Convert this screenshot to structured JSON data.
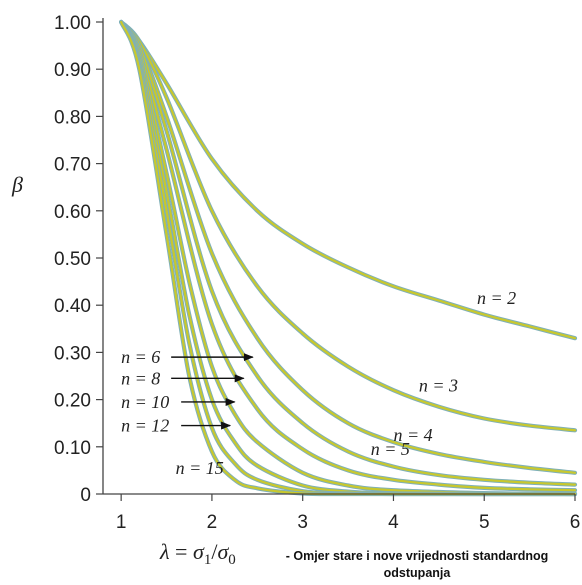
{
  "chart_data": {
    "type": "line",
    "title": "",
    "ylabel": "β",
    "xlabel": "λ = σ1/σ0",
    "xlabel_parts": {
      "lambda": "λ",
      "eq": " = ",
      "s1": "σ",
      "s1_sub": "1",
      "slash": "/",
      "s0": "σ",
      "s0_sub": "0"
    },
    "xlim": [
      0.8,
      6
    ],
    "ylim": [
      0,
      1
    ],
    "x_ticks": [
      "1",
      "2",
      "3",
      "4",
      "5",
      "6"
    ],
    "y_ticks": [
      "0",
      "0.10",
      "0.20",
      "0.30",
      "0.40",
      "0.50",
      "0.60",
      "0.70",
      "0.80",
      "0.90",
      "1.00"
    ],
    "grid": false,
    "legend": "none",
    "curve_color": "#c8c82e",
    "curve_edge_color": "#7fb0b8",
    "series": [
      {
        "name": "n = 2",
        "x": [
          1,
          1.2,
          1.5,
          2,
          2.5,
          3,
          3.5,
          4,
          4.5,
          5,
          5.5,
          6
        ],
        "values": [
          1.0,
          0.96,
          0.87,
          0.71,
          0.6,
          0.53,
          0.48,
          0.44,
          0.41,
          0.38,
          0.355,
          0.33
        ]
      },
      {
        "name": "n = 3",
        "x": [
          1,
          1.2,
          1.5,
          2,
          2.5,
          3,
          3.5,
          4,
          4.5,
          5,
          5.5,
          6
        ],
        "values": [
          1.0,
          0.96,
          0.84,
          0.6,
          0.44,
          0.34,
          0.27,
          0.22,
          0.185,
          0.16,
          0.145,
          0.135
        ]
      },
      {
        "name": "n = 4",
        "x": [
          1,
          1.2,
          1.5,
          2,
          2.5,
          3,
          3.5,
          4,
          4.5,
          5,
          5.5,
          6
        ],
        "values": [
          1.0,
          0.95,
          0.8,
          0.51,
          0.33,
          0.22,
          0.15,
          0.11,
          0.085,
          0.068,
          0.055,
          0.045
        ]
      },
      {
        "name": "n = 5",
        "x": [
          1,
          1.2,
          1.5,
          2,
          2.5,
          3,
          3.5,
          4,
          4.5,
          5,
          5.5,
          6
        ],
        "values": [
          1.0,
          0.95,
          0.77,
          0.43,
          0.25,
          0.15,
          0.09,
          0.058,
          0.04,
          0.03,
          0.024,
          0.02
        ]
      },
      {
        "name": "n = 6",
        "x": [
          1,
          1.2,
          1.5,
          2,
          2.5,
          3,
          3.5,
          4,
          4.5,
          5,
          5.5,
          6
        ],
        "values": [
          1.0,
          0.94,
          0.73,
          0.36,
          0.18,
          0.095,
          0.05,
          0.03,
          0.02,
          0.013,
          0.01,
          0.008
        ]
      },
      {
        "name": "n = 8",
        "x": [
          1,
          1.2,
          1.5,
          1.75,
          2,
          2.25,
          2.5,
          3,
          3.5,
          4,
          5,
          6
        ],
        "values": [
          1.0,
          0.93,
          0.68,
          0.45,
          0.27,
          0.17,
          0.11,
          0.045,
          0.018,
          0.008,
          0.002,
          0.0
        ]
      },
      {
        "name": "n = 10",
        "x": [
          1,
          1.2,
          1.5,
          1.75,
          2,
          2.25,
          2.5,
          3,
          3.5,
          4,
          5,
          6
        ],
        "values": [
          1.0,
          0.92,
          0.64,
          0.38,
          0.2,
          0.11,
          0.06,
          0.018,
          0.005,
          0.001,
          0.0,
          0.0
        ]
      },
      {
        "name": "n = 12",
        "x": [
          1,
          1.2,
          1.5,
          1.75,
          2,
          2.25,
          2.5,
          3,
          3.5,
          4,
          5,
          6
        ],
        "values": [
          1.0,
          0.91,
          0.6,
          0.32,
          0.14,
          0.065,
          0.03,
          0.006,
          0.001,
          0.0,
          0.0,
          0.0
        ]
      },
      {
        "name": "n = 15",
        "x": [
          1,
          1.2,
          1.5,
          1.75,
          2,
          2.25,
          2.5,
          3,
          3.5,
          4,
          5,
          6
        ],
        "values": [
          1.0,
          0.9,
          0.55,
          0.25,
          0.09,
          0.03,
          0.012,
          0.001,
          0.0,
          0.0,
          0.0,
          0.0
        ]
      }
    ],
    "annotations": [
      {
        "text": "n = 2",
        "x": 4.92,
        "y": 0.415
      },
      {
        "text": "n = 3",
        "x": 4.28,
        "y": 0.23
      },
      {
        "text": "n = 4",
        "x": 4.0,
        "y": 0.125
      },
      {
        "text": "n = 5",
        "x": 3.75,
        "y": 0.095
      },
      {
        "text": "n = 6",
        "x": 1.0,
        "y": 0.29,
        "arrow_to": [
          2.45,
          0.29
        ]
      },
      {
        "text": "n = 8",
        "x": 1.0,
        "y": 0.245,
        "arrow_to": [
          2.35,
          0.245
        ]
      },
      {
        "text": "n = 10",
        "x": 1.0,
        "y": 0.195,
        "arrow_to": [
          2.25,
          0.195
        ]
      },
      {
        "text": "n = 12",
        "x": 1.0,
        "y": 0.145,
        "arrow_to": [
          2.2,
          0.145
        ]
      },
      {
        "text": "n = 15",
        "x": 1.6,
        "y": 0.055
      }
    ],
    "caption": "- Omjer stare i nove vrijednosti standardnog odstupanja"
  }
}
